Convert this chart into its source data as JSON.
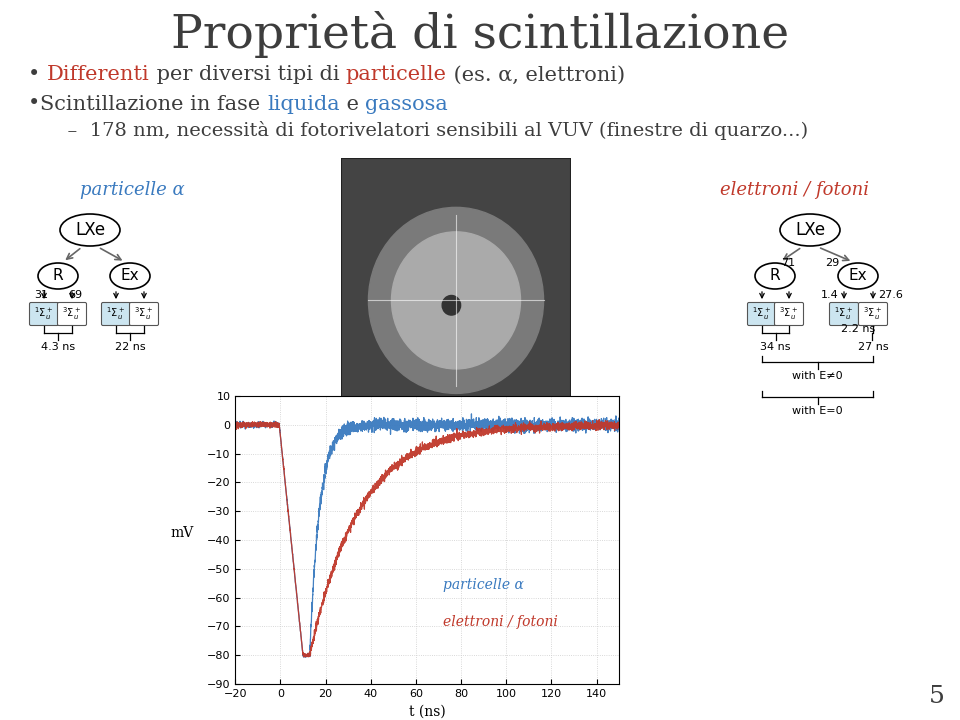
{
  "title": "Proprietà di scintillazione",
  "title_color": "#3d3d3d",
  "title_fontsize": 34,
  "bg_color": "#ffffff",
  "bullet1_parts": [
    {
      "text": "• ",
      "color": "#3d3d3d"
    },
    {
      "text": "Differenti",
      "color": "#c0392b"
    },
    {
      "text": " per diversi tipi di ",
      "color": "#3d3d3d"
    },
    {
      "text": "particelle",
      "color": "#c0392b"
    },
    {
      "text": " (es. α, elettroni)",
      "color": "#3d3d3d"
    }
  ],
  "bullet2_parts": [
    {
      "text": "•",
      "color": "#3d3d3d"
    },
    {
      "text": "Scintillazione in fase ",
      "color": "#3d3d3d"
    },
    {
      "text": "liquida",
      "color": "#3a7abf"
    },
    {
      "text": " e ",
      "color": "#3d3d3d"
    },
    {
      "text": "gassosa",
      "color": "#3a7abf"
    }
  ],
  "bullet3": "  –  178 nm, necessità di fotorivelatori sensibili al VUV (finestre di quarzo...)",
  "bullet3_color": "#3d3d3d",
  "label_alpha": "particelle α",
  "label_alpha_color": "#3a7abf",
  "label_elec": "elettroni / fotoni",
  "label_elec_color": "#c0392b",
  "page_number": "5",
  "plot_xlabel": "t (ns)",
  "plot_ylabel": "mV",
  "plot_xlim": [
    -20,
    150
  ],
  "plot_ylim": [
    -90,
    10
  ],
  "plot_xticks": [
    -20,
    0,
    20,
    40,
    60,
    80,
    100,
    120,
    140
  ],
  "plot_yticks": [
    10,
    0,
    -10,
    -20,
    -30,
    -40,
    -50,
    -60,
    -70,
    -80,
    -90
  ],
  "alpha_color": "#3a7abf",
  "elec_color": "#c0392b",
  "plot_legend_alpha": "particelle α",
  "plot_legend_elec": "elettroni / fotoni"
}
